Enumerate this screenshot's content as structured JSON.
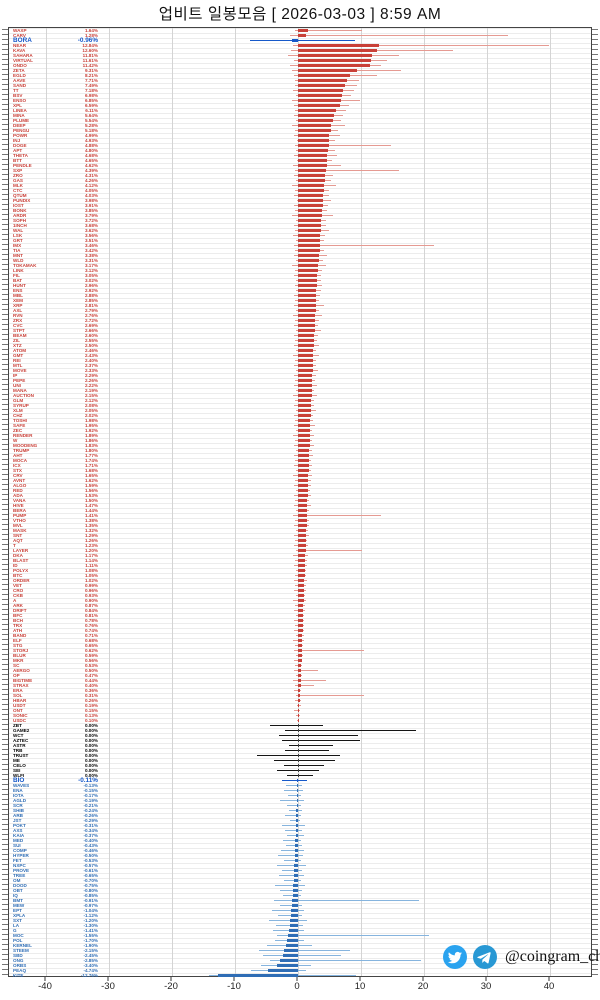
{
  "title": "업비트 일봉모음 [ 2026-03-03 ]  8:59 AM",
  "watermark": {
    "handle": "@coingram_ch",
    "icons": [
      "twitter-icon",
      "telegram-icon"
    ]
  },
  "chart_data": {
    "type": "bar",
    "orientation": "horizontal",
    "title": "업비트 일봉모음 [ 2026-03-03 ]  8:59 AM",
    "xlabel": "",
    "ylabel": "",
    "unit": "%",
    "xlim": [
      -45.9,
      46.8
    ],
    "xticks": [
      -40,
      -30,
      -20,
      -10,
      0,
      10,
      20,
      30,
      40
    ],
    "grid": true,
    "legend": false,
    "colors": {
      "up_body": "#c94038",
      "up_wick": "#e59a92",
      "down_body": "#2f6db5",
      "down_wick": "#86b4de",
      "flat_body": "#3c3c3c",
      "flat_wick": "#141414",
      "highlight": "#1558c9",
      "grid": "#d4d4d4",
      "zero_line": "#2a2a2a"
    },
    "highlighted": [
      "BORA",
      "BIO"
    ],
    "row_format": [
      "ticker",
      "change_pct",
      "low_pct",
      "high_pct"
    ],
    "rows": [
      [
        "WAXP",
        1.64,
        -0.5,
        10.2
      ],
      [
        "CARV",
        1.28,
        -1.3,
        33.4
      ],
      [
        "BORA",
        -0.96,
        -7.6,
        9.1
      ],
      [
        "NEAR",
        12.84,
        -0.8,
        39.8
      ],
      [
        "KAVA",
        12.6,
        -1.1,
        24.6
      ],
      [
        "SAHARA",
        11.81,
        -1.6,
        16.1
      ],
      [
        "VIRTUAL",
        11.61,
        -0.6,
        14.2
      ],
      [
        "ONDO",
        11.42,
        -1.2,
        13.1
      ],
      [
        "ZETA",
        9.31,
        -0.9,
        16.4
      ],
      [
        "EGLD",
        8.21,
        -0.7,
        12.5
      ],
      [
        "AAVE",
        7.71,
        -0.5,
        9.7
      ],
      [
        "SAND",
        7.49,
        -0.4,
        9.3
      ],
      [
        "TT",
        7.18,
        -0.8,
        8.9
      ],
      [
        "BSV",
        6.98,
        -0.3,
        8.4
      ],
      [
        "ENSO",
        6.85,
        -1.0,
        9.8
      ],
      [
        "XPL",
        6.59,
        -0.6,
        8.1
      ],
      [
        "LINEA",
        6.11,
        -0.4,
        7.6
      ],
      [
        "MINA",
        5.64,
        -0.7,
        7.2
      ],
      [
        "PLUME",
        5.54,
        -0.3,
        6.8
      ],
      [
        "DEEP",
        5.28,
        -0.9,
        7.4
      ],
      [
        "PENGU",
        5.18,
        -0.4,
        6.3
      ],
      [
        "POWR",
        4.99,
        -0.6,
        6.6
      ],
      [
        "INJ",
        4.93,
        -0.2,
        5.9
      ],
      [
        "DOGE",
        4.88,
        -0.5,
        14.8
      ],
      [
        "APT",
        4.8,
        -0.3,
        5.8
      ],
      [
        "THETA",
        4.68,
        -0.7,
        6.2
      ],
      [
        "BTT",
        4.65,
        -0.2,
        5.4
      ],
      [
        "PENDLE",
        4.62,
        -0.8,
        6.9
      ],
      [
        "SXP",
        4.39,
        -0.4,
        16.0
      ],
      [
        "ZRO",
        4.31,
        -0.6,
        5.6
      ],
      [
        "GAS",
        4.26,
        -0.3,
        5.2
      ],
      [
        "MLK",
        4.12,
        -0.9,
        6.1
      ],
      [
        "CTC",
        4.05,
        -0.4,
        5.0
      ],
      [
        "QTUM",
        4.03,
        -0.6,
        4.9
      ],
      [
        "PUNDIX",
        3.98,
        -0.2,
        5.3
      ],
      [
        "IOST",
        3.91,
        -0.7,
        4.8
      ],
      [
        "BONK",
        3.85,
        -0.4,
        4.6
      ],
      [
        "ARDR",
        3.79,
        -0.9,
        5.5
      ],
      [
        "SOPH",
        3.72,
        -0.3,
        4.5
      ],
      [
        "1INCH",
        3.68,
        -0.6,
        4.4
      ],
      [
        "WAL",
        3.62,
        -0.4,
        5.0
      ],
      [
        "LSK",
        3.56,
        -0.8,
        4.3
      ],
      [
        "GRT",
        3.51,
        -0.3,
        4.2
      ],
      [
        "IMX",
        3.46,
        -0.6,
        21.6
      ],
      [
        "TIA",
        3.42,
        -0.4,
        4.1
      ],
      [
        "MNT",
        3.38,
        -0.7,
        4.6
      ],
      [
        "WLD",
        3.31,
        -0.3,
        4.0
      ],
      [
        "TOKAMAK",
        3.17,
        -0.9,
        4.4
      ],
      [
        "LINK",
        3.12,
        -0.4,
        3.8
      ],
      [
        "FIL",
        3.05,
        -0.6,
        3.7
      ],
      [
        "BAT",
        3.02,
        -0.3,
        3.6
      ],
      [
        "HUNT",
        2.96,
        -0.5,
        3.8
      ],
      [
        "ENS",
        2.92,
        -0.3,
        3.6
      ],
      [
        "MBL",
        2.88,
        -0.7,
        3.5
      ],
      [
        "XEM",
        2.85,
        -0.4,
        3.4
      ],
      [
        "XRP",
        2.81,
        -0.6,
        4.1
      ],
      [
        "AXL",
        2.79,
        -0.3,
        3.3
      ],
      [
        "RVN",
        2.76,
        -0.8,
        3.8
      ],
      [
        "ZRX",
        2.72,
        -0.4,
        3.3
      ],
      [
        "CVC",
        2.69,
        -0.6,
        3.2
      ],
      [
        "STPT",
        2.66,
        -0.3,
        3.7
      ],
      [
        "BEAM",
        2.6,
        -0.7,
        3.1
      ],
      [
        "ZIL",
        2.55,
        -0.4,
        3.0
      ],
      [
        "XTZ",
        2.5,
        -0.6,
        3.4
      ],
      [
        "ATOM",
        2.46,
        -0.3,
        2.9
      ],
      [
        "GMT",
        2.43,
        -0.8,
        3.3
      ],
      [
        "REI",
        2.4,
        -0.4,
        2.9
      ],
      [
        "MTL",
        2.37,
        -0.6,
        2.8
      ],
      [
        "MOVE",
        2.33,
        -0.3,
        3.2
      ],
      [
        "IP",
        2.29,
        -0.7,
        2.8
      ],
      [
        "PEPE",
        2.26,
        -0.4,
        2.7
      ],
      [
        "UNI",
        2.22,
        -0.6,
        3.0
      ],
      [
        "MANA",
        2.19,
        -0.3,
        2.6
      ],
      [
        "AUCTION",
        2.15,
        -0.8,
        3.0
      ],
      [
        "GLM",
        2.12,
        -0.4,
        2.6
      ],
      [
        "SYRUP",
        2.08,
        -0.6,
        2.5
      ],
      [
        "XLM",
        2.05,
        -0.3,
        2.8
      ],
      [
        "CHZ",
        2.02,
        -0.7,
        2.4
      ],
      [
        "TOSHI",
        1.98,
        -0.4,
        2.4
      ],
      [
        "SAFE",
        1.95,
        -0.6,
        2.7
      ],
      [
        "ZEC",
        1.92,
        -0.3,
        2.3
      ],
      [
        "RENDER",
        1.89,
        -0.8,
        2.6
      ],
      [
        "W",
        1.86,
        -0.4,
        2.2
      ],
      [
        "MOODENG",
        1.83,
        -0.6,
        2.5
      ],
      [
        "TRUMP",
        1.8,
        -0.3,
        2.2
      ],
      [
        "AHT",
        1.77,
        -0.7,
        2.4
      ],
      [
        "MOCA",
        1.74,
        -0.4,
        2.1
      ],
      [
        "ICX",
        1.71,
        -0.6,
        2.3
      ],
      [
        "STX",
        1.68,
        -0.3,
        2.0
      ],
      [
        "CRV",
        1.65,
        -0.8,
        2.2
      ],
      [
        "AVNT",
        1.62,
        -0.4,
        2.0
      ],
      [
        "ALGO",
        1.59,
        -0.6,
        2.1
      ],
      [
        "RED",
        1.56,
        -0.3,
        1.9
      ],
      [
        "ADA",
        1.53,
        -0.7,
        2.0
      ],
      [
        "VANA",
        1.5,
        -0.4,
        1.8
      ],
      [
        "HIVE",
        1.47,
        -0.6,
        2.0
      ],
      [
        "BERA",
        1.44,
        -0.3,
        1.7
      ],
      [
        "PUMP",
        1.41,
        -0.8,
        13.2
      ],
      [
        "VTHO",
        1.38,
        -0.4,
        1.7
      ],
      [
        "MVL",
        1.35,
        -0.6,
        1.8
      ],
      [
        "MASK",
        1.32,
        -0.3,
        1.6
      ],
      [
        "SNT",
        1.29,
        -0.7,
        1.7
      ],
      [
        "AQT",
        1.26,
        -0.4,
        1.5
      ],
      [
        "T",
        1.23,
        -0.6,
        1.6
      ],
      [
        "LAYER",
        1.2,
        -0.3,
        10.1
      ],
      [
        "DKA",
        1.17,
        -0.8,
        1.6
      ],
      [
        "BLAST",
        1.14,
        -0.4,
        1.4
      ],
      [
        "ID",
        1.11,
        -0.6,
        1.5
      ],
      [
        "POLYX",
        1.08,
        -0.3,
        1.3
      ],
      [
        "BTC",
        1.05,
        -0.5,
        1.3
      ],
      [
        "ORDER",
        1.02,
        -0.7,
        1.4
      ],
      [
        "VET",
        0.99,
        -0.4,
        1.2
      ],
      [
        "CRO",
        0.96,
        -0.6,
        1.3
      ],
      [
        "CKB",
        0.93,
        -0.3,
        1.1
      ],
      [
        "A",
        0.9,
        -0.8,
        1.2
      ],
      [
        "ARK",
        0.87,
        -0.4,
        1.1
      ],
      [
        "DRIFT",
        0.84,
        -0.6,
        1.1
      ],
      [
        "BFC",
        0.81,
        -0.3,
        1.0
      ],
      [
        "BCH",
        0.78,
        -0.7,
        1.0
      ],
      [
        "TRX",
        0.76,
        -0.4,
        0.9
      ],
      [
        "ATH",
        0.74,
        -0.6,
        1.0
      ],
      [
        "BAND",
        0.71,
        -0.3,
        0.9
      ],
      [
        "ELF",
        0.68,
        -0.8,
        0.9
      ],
      [
        "STG",
        0.65,
        -0.4,
        0.8
      ],
      [
        "STORJ",
        0.62,
        -0.6,
        10.4
      ],
      [
        "BLUR",
        0.59,
        -0.3,
        0.8
      ],
      [
        "MKR",
        0.56,
        -0.7,
        0.7
      ],
      [
        "SC",
        0.53,
        -0.4,
        0.7
      ],
      [
        "AERGO",
        0.5,
        -0.6,
        3.1
      ],
      [
        "OP",
        0.47,
        -0.3,
        0.6
      ],
      [
        "BIGTIME",
        0.44,
        -0.8,
        4.5
      ],
      [
        "STRAX",
        0.4,
        -0.4,
        2.6
      ],
      [
        "ERA",
        0.36,
        -0.6,
        0.5
      ],
      [
        "SOL",
        0.31,
        -0.3,
        10.4
      ],
      [
        "HBAR",
        0.26,
        -0.5,
        0.4
      ],
      [
        "USDT",
        0.19,
        -0.1,
        0.4
      ],
      [
        "ONT",
        0.15,
        -0.6,
        0.3
      ],
      [
        "SONIC",
        0.13,
        -0.3,
        0.3
      ],
      [
        "USDC",
        0.1,
        -0.1,
        0.2
      ],
      [
        "ZBT",
        0.0,
        -4.5,
        4.0
      ],
      [
        "GAME2",
        0.0,
        -2.0,
        18.8
      ],
      [
        "WCT",
        0.0,
        -3.0,
        9.6
      ],
      [
        "AZTEC",
        0.0,
        -2.5,
        9.8
      ],
      [
        "ASTR",
        0.0,
        -1.5,
        5.5
      ],
      [
        "TRB",
        0.0,
        -2.0,
        5.0
      ],
      [
        "TRUST",
        0.0,
        -6.5,
        6.7
      ],
      [
        "ME",
        0.0,
        -3.8,
        5.8
      ],
      [
        "CELO",
        0.0,
        -2.2,
        4.2
      ],
      [
        "SEI",
        0.0,
        -3.4,
        3.3
      ],
      [
        "WLFI",
        0.0,
        -1.8,
        2.4
      ],
      [
        "BIO",
        -0.11,
        -2.6,
        1.4
      ],
      [
        "WAVES",
        -0.13,
        -1.9,
        0.6
      ],
      [
        "ENA",
        -0.15,
        -2.2,
        0.8
      ],
      [
        "IOTA",
        -0.17,
        -1.6,
        0.5
      ],
      [
        "AGLD",
        -0.19,
        -2.8,
        0.9
      ],
      [
        "SCR",
        -0.21,
        -1.8,
        0.4
      ],
      [
        "SHIB",
        -0.24,
        -1.5,
        0.6
      ],
      [
        "ARB",
        -0.26,
        -2.1,
        0.5
      ],
      [
        "JST",
        -0.29,
        -1.3,
        0.3
      ],
      [
        "POKT",
        -0.31,
        -2.6,
        1.1
      ],
      [
        "AXS",
        -0.34,
        -2.0,
        0.6
      ],
      [
        "KAIA",
        -0.37,
        -1.7,
        0.9
      ],
      [
        "MED",
        -0.4,
        -2.4,
        0.5
      ],
      [
        "SUI",
        -0.43,
        -1.9,
        0.7
      ],
      [
        "COMP",
        -0.46,
        -2.7,
        1.0
      ],
      [
        "HYPER",
        -0.5,
        -3.1,
        0.8
      ],
      [
        "FET",
        -0.53,
        -2.3,
        0.5
      ],
      [
        "NXPC",
        -0.57,
        -3.4,
        1.2
      ],
      [
        "PROVE",
        -0.61,
        -2.6,
        0.6
      ],
      [
        "TREE",
        -0.65,
        -3.0,
        0.9
      ],
      [
        "OM",
        -0.7,
        -2.2,
        0.4
      ],
      [
        "DOOD",
        -0.75,
        -3.6,
        1.1
      ],
      [
        "OBT",
        -0.8,
        -2.9,
        0.7
      ],
      [
        "IQ",
        -0.85,
        -2.4,
        0.5
      ],
      [
        "BMT",
        -0.91,
        -3.8,
        19.2
      ],
      [
        "MEW",
        -0.97,
        -2.8,
        0.6
      ],
      [
        "EPT",
        -1.04,
        -4.2,
        1.0
      ],
      [
        "XPLA",
        -1.12,
        -3.2,
        0.7
      ],
      [
        "SXT",
        -1.2,
        -4.6,
        1.4
      ],
      [
        "LA",
        -1.3,
        -3.5,
        0.8
      ],
      [
        "G",
        -1.41,
        -4.0,
        1.0
      ],
      [
        "MOC",
        -1.55,
        -3.3,
        20.8
      ],
      [
        "POL",
        -1.7,
        -3.7,
        1.0
      ],
      [
        "KERNEL",
        -1.9,
        -4.9,
        2.2
      ],
      [
        "STEEM",
        -2.15,
        -6.2,
        8.3
      ],
      [
        "SBD",
        -2.45,
        -5.6,
        6.9
      ],
      [
        "ONG",
        -2.85,
        -4.4,
        19.6
      ],
      [
        "ORBS",
        -3.4,
        -5.9,
        2.1
      ],
      [
        "PEAQ",
        -4.74,
        -7.4,
        1.2
      ],
      [
        "KITE",
        -12.76,
        -14.2,
        9.2
      ]
    ]
  }
}
